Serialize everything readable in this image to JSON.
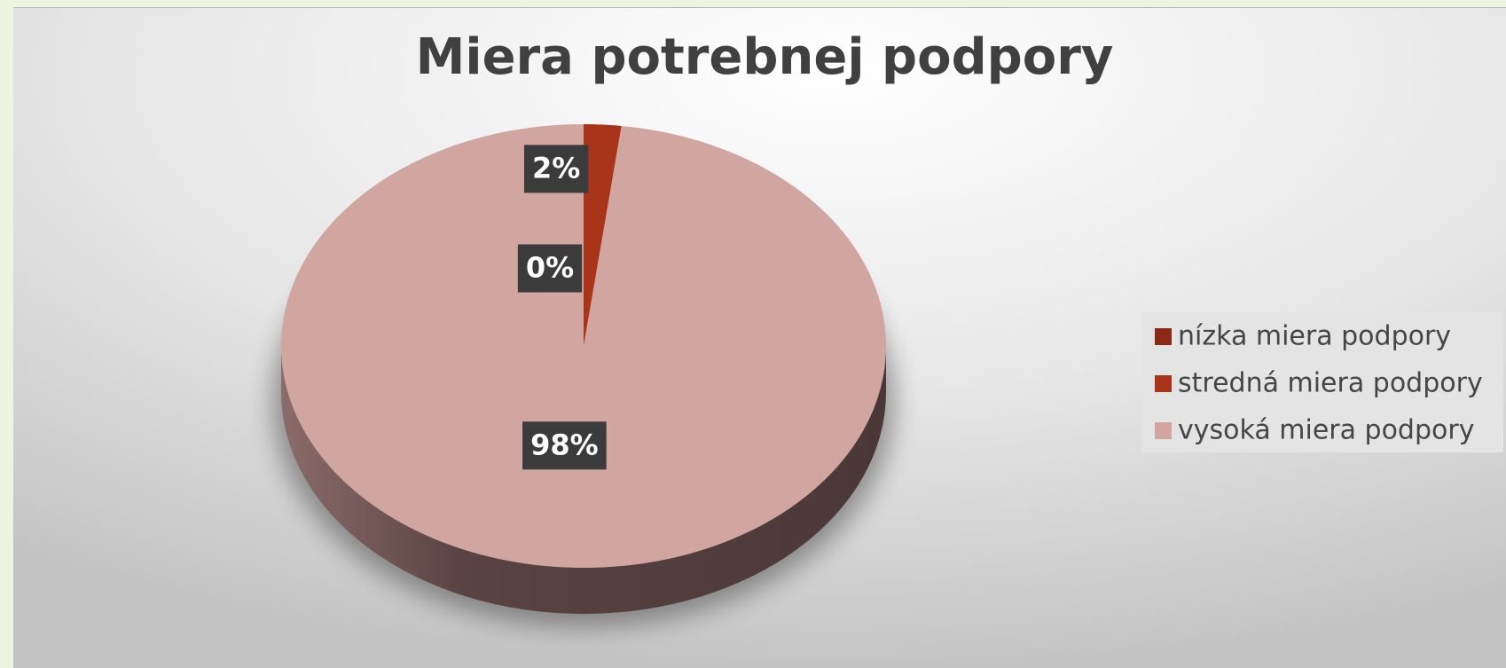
{
  "chart_data": {
    "type": "pie",
    "title": "Miera potrebnej podpory",
    "categories": [
      "nízka miera podpory",
      "stredná miera podpory",
      "vysoká miera podpory"
    ],
    "values": [
      0,
      2,
      98
    ],
    "value_labels": [
      "0%",
      "2%",
      "98%"
    ],
    "colors": [
      "#8b2a14",
      "#a8341a",
      "#d1a5a0"
    ],
    "legend": "right"
  }
}
